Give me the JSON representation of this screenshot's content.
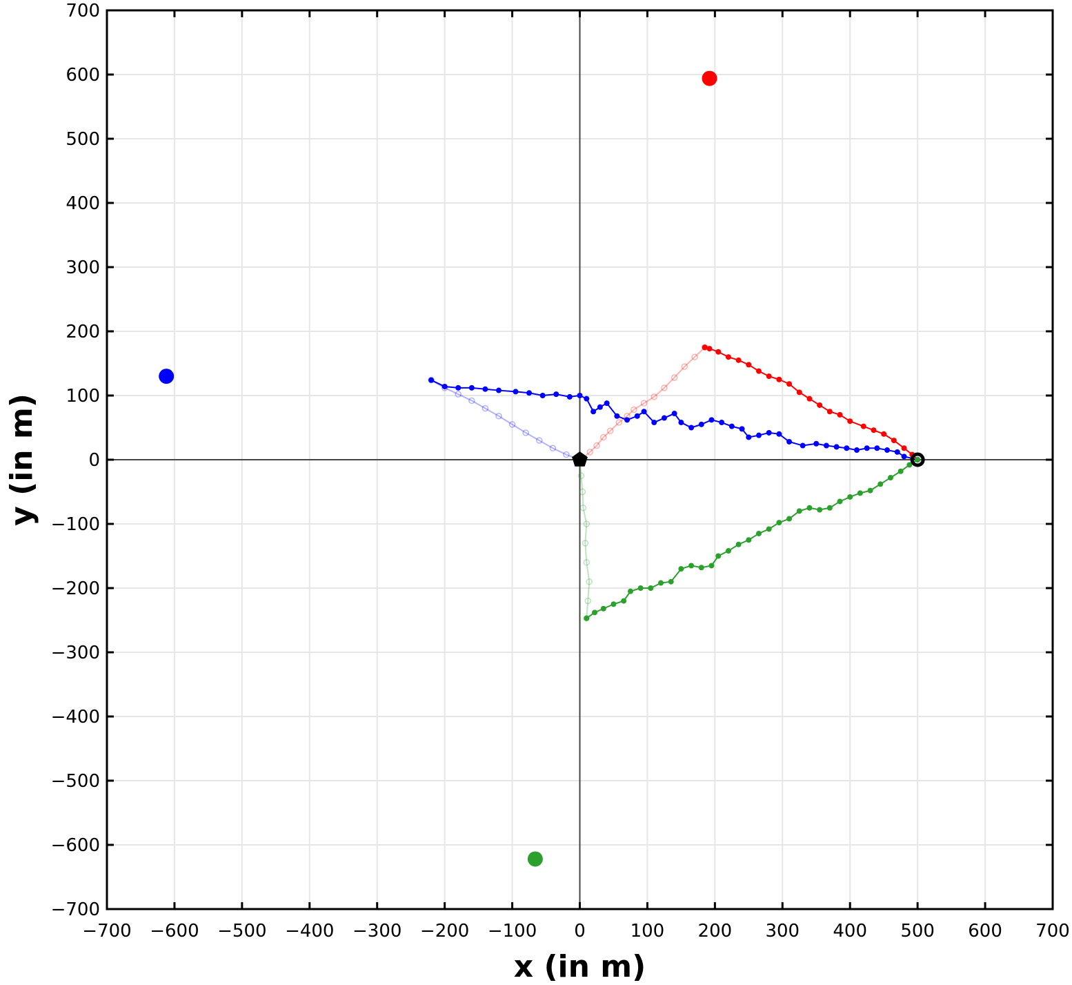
{
  "chart_data": {
    "type": "scatter",
    "title": "",
    "xlabel": "x (in m)",
    "ylabel": "y (in m)",
    "xlim": [
      -700,
      700
    ],
    "ylim": [
      -700,
      700
    ],
    "xticks": [
      -700,
      -600,
      -500,
      -400,
      -300,
      -200,
      -100,
      0,
      100,
      200,
      300,
      400,
      500,
      600,
      700
    ],
    "yticks": [
      -700,
      -600,
      -500,
      -400,
      -300,
      -200,
      -100,
      0,
      100,
      200,
      300,
      400,
      500,
      600,
      700
    ],
    "xtick_labels": [
      "−700",
      "−600",
      "−500",
      "−400",
      "−300",
      "−200",
      "−100",
      "0",
      "100",
      "200",
      "300",
      "400",
      "500",
      "600",
      "700"
    ],
    "ytick_labels": [
      "−700",
      "−600",
      "−500",
      "−400",
      "−300",
      "−200",
      "−100",
      "0",
      "100",
      "200",
      "300",
      "400",
      "500",
      "600",
      "700"
    ],
    "grid": true,
    "origin_marker": {
      "x": 0,
      "y": 0,
      "shape": "pentagon",
      "color": "#000000"
    },
    "start_marker": {
      "x": 500,
      "y": 0,
      "shape": "circle",
      "color": "#000000"
    },
    "targets": [
      {
        "x": 192,
        "y": 594,
        "color": "#ff0000"
      },
      {
        "x": -612,
        "y": 130,
        "color": "#0000ff"
      },
      {
        "x": -66,
        "y": -622,
        "color": "#2ca02c"
      }
    ],
    "series": [
      {
        "color": "#ff0000",
        "outbound": [
          [
            500,
            0
          ],
          [
            492,
            8
          ],
          [
            480,
            18
          ],
          [
            465,
            30
          ],
          [
            450,
            40
          ],
          [
            435,
            46
          ],
          [
            420,
            52
          ],
          [
            400,
            60
          ],
          [
            385,
            70
          ],
          [
            370,
            75
          ],
          [
            355,
            85
          ],
          [
            340,
            95
          ],
          [
            325,
            105
          ],
          [
            310,
            118
          ],
          [
            295,
            125
          ],
          [
            280,
            130
          ],
          [
            265,
            138
          ],
          [
            250,
            148
          ],
          [
            235,
            155
          ],
          [
            220,
            160
          ],
          [
            205,
            168
          ],
          [
            192,
            173
          ],
          [
            185,
            175
          ]
        ],
        "return": [
          [
            185,
            175
          ],
          [
            170,
            160
          ],
          [
            155,
            145
          ],
          [
            140,
            128
          ],
          [
            125,
            112
          ],
          [
            110,
            98
          ],
          [
            95,
            88
          ],
          [
            80,
            78
          ],
          [
            70,
            68
          ],
          [
            58,
            58
          ],
          [
            45,
            45
          ],
          [
            35,
            35
          ],
          [
            25,
            22
          ],
          [
            15,
            12
          ],
          [
            5,
            3
          ],
          [
            0,
            0
          ]
        ]
      },
      {
        "color": "#0000ff",
        "outbound": [
          [
            500,
            0
          ],
          [
            480,
            5
          ],
          [
            470,
            12
          ],
          [
            455,
            15
          ],
          [
            440,
            18
          ],
          [
            425,
            18
          ],
          [
            410,
            15
          ],
          [
            395,
            18
          ],
          [
            380,
            20
          ],
          [
            365,
            22
          ],
          [
            350,
            25
          ],
          [
            330,
            22
          ],
          [
            310,
            28
          ],
          [
            295,
            40
          ],
          [
            280,
            42
          ],
          [
            265,
            38
          ],
          [
            250,
            35
          ],
          [
            240,
            48
          ],
          [
            225,
            52
          ],
          [
            210,
            58
          ],
          [
            195,
            62
          ],
          [
            180,
            55
          ],
          [
            165,
            50
          ],
          [
            150,
            58
          ],
          [
            140,
            72
          ],
          [
            125,
            65
          ],
          [
            110,
            58
          ],
          [
            95,
            75
          ],
          [
            85,
            68
          ],
          [
            70,
            62
          ],
          [
            55,
            68
          ],
          [
            40,
            88
          ],
          [
            30,
            82
          ],
          [
            20,
            75
          ],
          [
            10,
            95
          ],
          [
            0,
            100
          ],
          [
            -15,
            98
          ],
          [
            -35,
            102
          ],
          [
            -55,
            100
          ],
          [
            -75,
            104
          ],
          [
            -95,
            106
          ],
          [
            -120,
            108
          ],
          [
            -140,
            110
          ],
          [
            -160,
            112
          ],
          [
            -180,
            112
          ],
          [
            -200,
            114
          ],
          [
            -220,
            124
          ]
        ],
        "return": [
          [
            -220,
            124
          ],
          [
            -200,
            112
          ],
          [
            -180,
            102
          ],
          [
            -160,
            92
          ],
          [
            -140,
            80
          ],
          [
            -120,
            68
          ],
          [
            -100,
            55
          ],
          [
            -80,
            42
          ],
          [
            -60,
            30
          ],
          [
            -40,
            18
          ],
          [
            -20,
            8
          ],
          [
            0,
            0
          ]
        ]
      },
      {
        "color": "#2ca02c",
        "outbound": [
          [
            500,
            0
          ],
          [
            488,
            -8
          ],
          [
            475,
            -18
          ],
          [
            460,
            -28
          ],
          [
            445,
            -38
          ],
          [
            430,
            -48
          ],
          [
            415,
            -52
          ],
          [
            400,
            -58
          ],
          [
            385,
            -65
          ],
          [
            370,
            -75
          ],
          [
            355,
            -78
          ],
          [
            340,
            -75
          ],
          [
            325,
            -80
          ],
          [
            310,
            -92
          ],
          [
            295,
            -98
          ],
          [
            280,
            -108
          ],
          [
            265,
            -115
          ],
          [
            250,
            -125
          ],
          [
            235,
            -132
          ],
          [
            220,
            -142
          ],
          [
            205,
            -150
          ],
          [
            195,
            -165
          ],
          [
            180,
            -168
          ],
          [
            165,
            -165
          ],
          [
            150,
            -170
          ],
          [
            135,
            -190
          ],
          [
            120,
            -192
          ],
          [
            105,
            -200
          ],
          [
            90,
            -200
          ],
          [
            75,
            -205
          ],
          [
            65,
            -220
          ],
          [
            50,
            -225
          ],
          [
            35,
            -232
          ],
          [
            22,
            -238
          ],
          [
            10,
            -247
          ]
        ],
        "return": [
          [
            10,
            -247
          ],
          [
            12,
            -220
          ],
          [
            14,
            -190
          ],
          [
            10,
            -160
          ],
          [
            8,
            -130
          ],
          [
            10,
            -100
          ],
          [
            5,
            -75
          ],
          [
            4,
            -50
          ],
          [
            2,
            -25
          ],
          [
            0,
            0
          ]
        ]
      }
    ]
  }
}
